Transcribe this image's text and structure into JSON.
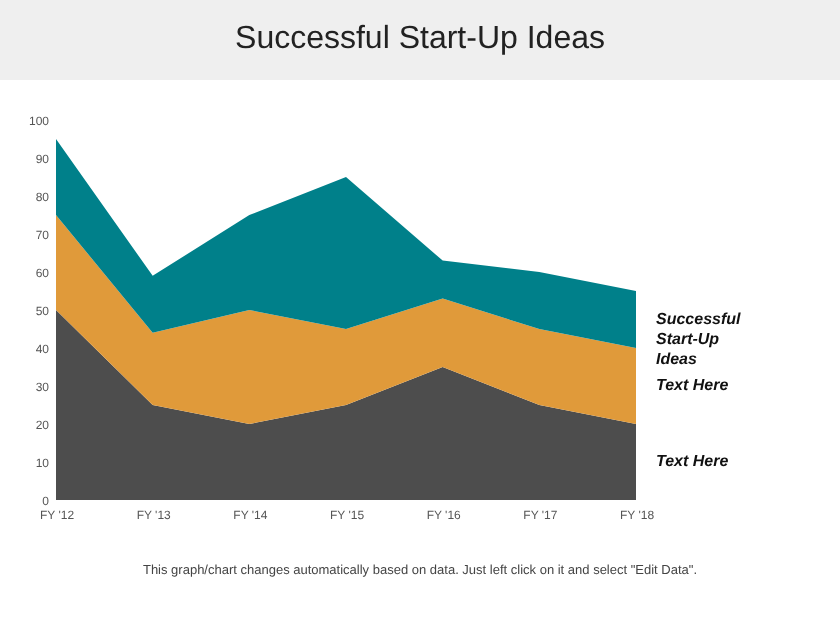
{
  "chart_data": {
    "type": "area",
    "title": "Successful Start-Up Ideas",
    "stacked": true,
    "categories": [
      "FY '12",
      "FY '13",
      "FY '14",
      "FY '15",
      "FY '16",
      "FY '17",
      "FY '18"
    ],
    "series": [
      {
        "name": "Text Here",
        "color": "#4d4d4d",
        "values": [
          50,
          25,
          20,
          25,
          35,
          25,
          20
        ]
      },
      {
        "name": "Text Here",
        "color": "#e09a3a",
        "values": [
          25,
          19,
          30,
          20,
          18,
          20,
          20
        ]
      },
      {
        "name": "Successful Start-Up Ideas",
        "color": "#00808a",
        "values": [
          20,
          15,
          25,
          40,
          10,
          15,
          15
        ]
      }
    ],
    "ylim": [
      0,
      100
    ],
    "yticks": [
      0,
      10,
      20,
      30,
      40,
      50,
      60,
      70,
      80,
      90,
      100
    ],
    "grid": false,
    "legend": false,
    "annotations": [
      "This graph/chart changes automatically based on data. Just left click on it and select \"Edit Data\"."
    ]
  }
}
